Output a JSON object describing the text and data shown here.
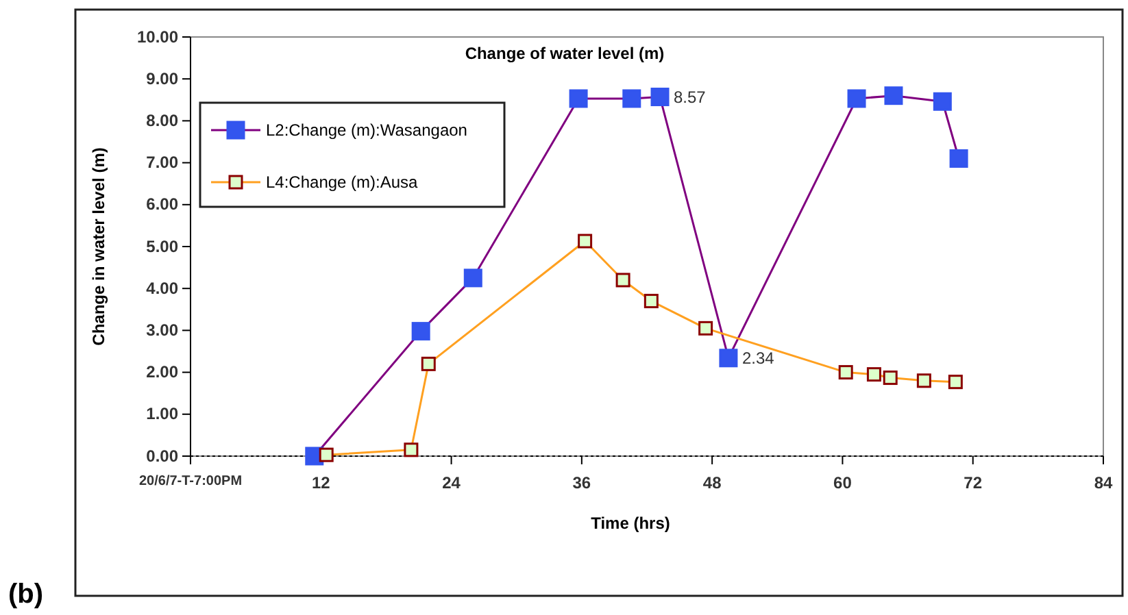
{
  "chart_data": {
    "type": "line",
    "title": "Change of  water level (m)",
    "xlabel": "Time (hrs)",
    "ylabel": "Change in water level (m)",
    "xlim": [
      0,
      84
    ],
    "ylim": [
      0,
      10
    ],
    "xticks": [
      {
        "value": 0,
        "label": "20/6/7-T-7:00PM"
      },
      12,
      24,
      36,
      48,
      60,
      72,
      84
    ],
    "yticks": [
      {
        "value": 0,
        "label": "0.00"
      },
      {
        "value": 1,
        "label": "1.00"
      },
      {
        "value": 2,
        "label": "2.00"
      },
      {
        "value": 3,
        "label": "3.00"
      },
      {
        "value": 4,
        "label": "4.00"
      },
      {
        "value": 5,
        "label": "5.00"
      },
      {
        "value": 6,
        "label": "6.00"
      },
      {
        "value": 7,
        "label": "7.00"
      },
      {
        "value": 8,
        "label": "8.00"
      },
      {
        "value": 9,
        "label": "9.00"
      },
      {
        "value": 10,
        "label": "10.00"
      }
    ],
    "series": [
      {
        "name": "L2:Change (m):Wasangaon",
        "color": "#800080",
        "marker": "square",
        "x": [
          11.4,
          21.2,
          26,
          35.7,
          40.6,
          43.2,
          49.5,
          61.3,
          64.7,
          69.2,
          70.7
        ],
        "values": [
          0,
          2.98,
          4.25,
          8.53,
          8.53,
          8.57,
          2.34,
          8.53,
          8.6,
          8.46,
          7.1
        ]
      },
      {
        "name": "L4:Change (m):Ausa",
        "color": "#ffa020",
        "marker": "square",
        "x": [
          12.5,
          20.3,
          21.9,
          36.3,
          39.8,
          42.4,
          47.4,
          60.3,
          62.9,
          64.4,
          67.5,
          70.4
        ],
        "values": [
          0.03,
          0.15,
          2.2,
          5.13,
          4.2,
          3.7,
          3.05,
          2.0,
          1.95,
          1.87,
          1.8,
          1.77
        ]
      }
    ],
    "annotations": [
      {
        "text": "8.57",
        "x": 43.2,
        "y": 8.57
      },
      {
        "text": "2.34",
        "x": 49.5,
        "y": 2.34
      },
      "(b)"
    ],
    "legend": "top left",
    "grid": false
  }
}
